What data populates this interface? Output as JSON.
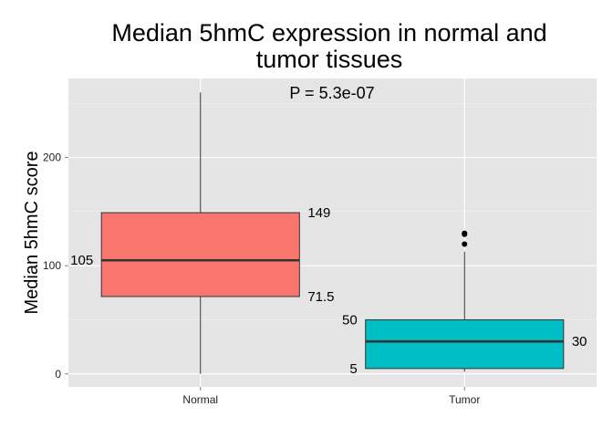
{
  "chart_data": {
    "type": "box",
    "title_line1": "Median 5hmC expression in normal and",
    "title_line2": "tumor tissues",
    "xlabel": "",
    "ylabel": "Median 5hmC score",
    "ylim": [
      -12,
      273
    ],
    "yticks": [
      0,
      100,
      200
    ],
    "grid": true,
    "annotation": "P = 5.3e-07",
    "categories": [
      "Normal",
      "Tumor"
    ],
    "boxes": [
      {
        "category": "Normal",
        "whisker_low": 0,
        "q1": 71.5,
        "median": 105,
        "q3": 149,
        "whisker_high": 260,
        "outliers": [],
        "color": "#F8766D"
      },
      {
        "category": "Tumor",
        "whisker_low": 2,
        "q1": 5,
        "median": 30,
        "q3": 50,
        "whisker_high": 113,
        "outliers": [
          120,
          129,
          130
        ],
        "color": "#00BFC4"
      }
    ],
    "value_labels": [
      {
        "category": "Normal",
        "side": "right",
        "text": "149",
        "value": 149
      },
      {
        "category": "Normal",
        "side": "left",
        "text": "105",
        "value": 105
      },
      {
        "category": "Normal",
        "side": "right",
        "text": "71.5",
        "value": 71.5
      },
      {
        "category": "Tumor",
        "side": "left",
        "text": "50",
        "value": 50
      },
      {
        "category": "Tumor",
        "side": "right",
        "text": "30",
        "value": 30
      },
      {
        "category": "Tumor",
        "side": "left",
        "text": "5",
        "value": 5
      }
    ],
    "colors": {
      "panel": "#E5E5E5",
      "grid_major": "#FFFFFF",
      "grid_minor": "#F2F2F2",
      "outline": "#333333"
    }
  }
}
